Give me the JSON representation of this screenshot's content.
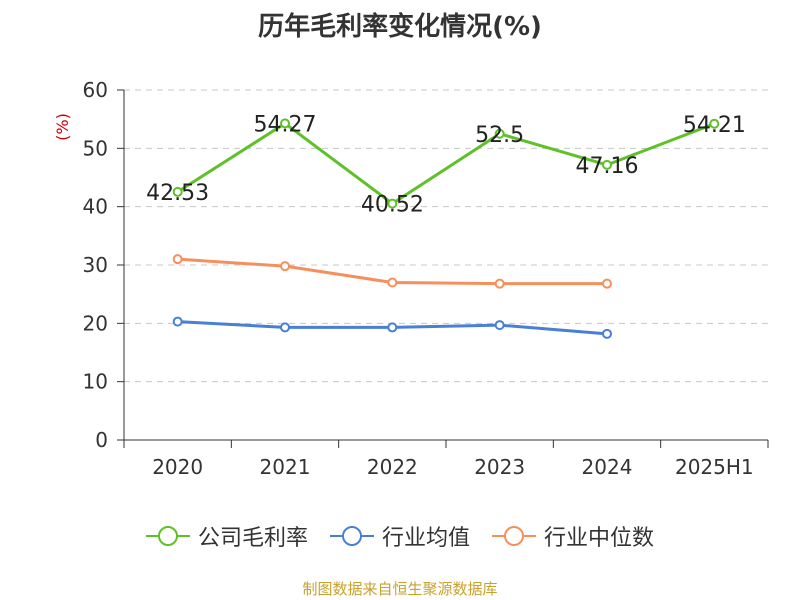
{
  "chart_data": {
    "type": "line",
    "title": "历年毛利率变化情况(%)",
    "ylabel": "(%)",
    "xlabel": "",
    "categories": [
      "2020",
      "2021",
      "2022",
      "2023",
      "2024",
      "2025H1"
    ],
    "ylim": [
      0,
      60
    ],
    "yticks": [
      0,
      10,
      20,
      30,
      40,
      50,
      60
    ],
    "grid": true,
    "legend_position": "bottom",
    "series": [
      {
        "name": "公司毛利率",
        "color": "#5ec12a",
        "values": [
          42.53,
          54.27,
          40.52,
          52.5,
          47.16,
          54.21
        ],
        "show_labels": true
      },
      {
        "name": "行业均值",
        "color": "#4a7fd6",
        "values": [
          20.3,
          19.3,
          19.3,
          19.7,
          18.2,
          null
        ],
        "show_labels": false
      },
      {
        "name": "行业中位数",
        "color": "#f5905c",
        "values": [
          31.0,
          29.8,
          27.0,
          26.8,
          26.8,
          null
        ],
        "show_labels": false
      }
    ]
  },
  "footer": {
    "source": "制图数据来自恒生聚源数据库"
  }
}
